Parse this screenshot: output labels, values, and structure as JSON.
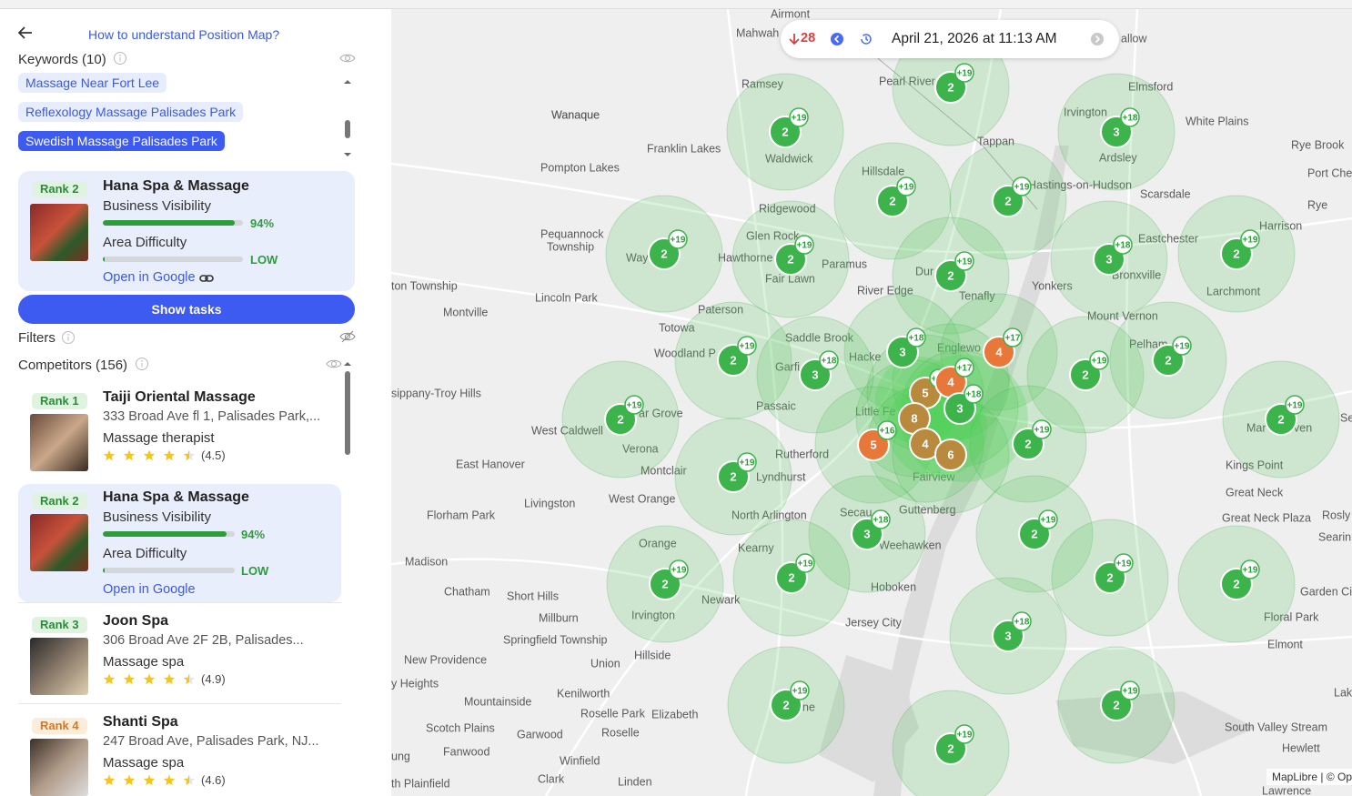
{
  "sidebar": {
    "help_link": "How to understand Position Map?",
    "keywords": {
      "label": "Keywords (10)",
      "items": [
        "Massage Near Fort Lee",
        "Reflexology Massage Palisades Park",
        "Swedish Massage Palisades Park"
      ]
    },
    "selected": {
      "rank": "Rank 2",
      "name": "Hana Spa & Massage",
      "visibility_label": "Business Visibility",
      "visibility": 94,
      "visibility_text": "94%",
      "difficulty_label": "Area Difficulty",
      "difficulty": "LOW",
      "link": "Open in Google"
    },
    "show_tasks": "Show tasks",
    "filters": "Filters",
    "competitors": {
      "label": "Competitors (156)",
      "items": [
        {
          "rank": "Rank 1",
          "name": "Taiji Oriental Massage",
          "address": "333 Broad Ave fl 1, Palisades Park,...",
          "category": "Massage therapist",
          "rating": "(4.5)"
        },
        {
          "rank": "Rank 2",
          "name": "Hana Spa & Massage",
          "visibility_label": "Business Visibility",
          "visibility": 94,
          "visibility_text": "94%",
          "difficulty_label": "Area Difficulty",
          "difficulty": "LOW",
          "link": "Open in Google"
        },
        {
          "rank": "Rank 3",
          "name": "Joon Spa",
          "address": "306 Broad Ave 2F 2B, Palisades...",
          "category": "Massage spa",
          "rating": "(4.9)"
        },
        {
          "rank": "Rank 4",
          "name": "Shanti Spa",
          "address": "247 Broad Ave, Palisades Park, NJ...",
          "category": "Massage spa",
          "rating": "(4.6)"
        }
      ]
    }
  },
  "map": {
    "toolbar": {
      "change": "28",
      "date": "April 21, 2026 at 11:13 AM"
    },
    "places": [
      "Airmont",
      "Mahwah",
      "Ramsey",
      "Pearl River",
      "Elmsford",
      "Wanaque",
      "Irvington",
      "White Plains",
      "Tappan",
      "Franklin Lakes",
      "Rye Brook",
      "Waldwick",
      "Ardsley",
      "Pompton Lakes",
      "Hillsdale",
      "Port Ches",
      "Hastings-on-Hudson",
      "Scarsdale",
      "Ridgewood",
      "Rye",
      "Harrison",
      "Pequannock",
      "Township",
      "Glen Rock",
      "Eastchester",
      "Hawthorne",
      "Paramus",
      "Fair Lawn",
      "Bronxville",
      "ton Township",
      "Lincoln Park",
      "River Edge",
      "Yonkers",
      "Tenafly",
      "Larchmont",
      "Montville",
      "Paterson",
      "Mount Vernon",
      "Totowa",
      "Saddle Brook",
      "Woodland P",
      "Hacke",
      "Englewo",
      "Pelham",
      "Garfi",
      "sippany-Troy Hills",
      "Passaic",
      "Little Fe",
      "ar Grove",
      "West Caldwell",
      "Verona",
      "Rutherford",
      "East Hanover",
      "Montclair",
      "Lyndhurst",
      "Kings Point",
      "Fairview",
      "Livingston",
      "West Orange",
      "Great Neck",
      "Guttenberg",
      "Florham Park",
      "North Arlington",
      "Secau",
      "Great Neck Plaza",
      "Rosly",
      "Searin",
      "Orange",
      "Kearny",
      "Weehawken",
      "Madison",
      "Hoboken",
      "Garden Cit",
      "Chatham",
      "Short Hills",
      "Newark",
      "Irvington",
      "Jersey City",
      "Floral Park",
      "Millburn",
      "Springfield Township",
      "Elmont",
      "Hillside",
      "New Providence",
      "Union",
      "y Heights",
      "Lak",
      "Mountainside",
      "Kenilworth",
      "Roselle Park",
      "Elizabeth",
      "South Valley Stream",
      "Scotch Plains",
      "Roselle",
      "Garwood",
      "Hewlett",
      "Fanwood",
      "Winfield",
      "Clark",
      "Linden",
      "th Plainfield",
      "ung",
      "Lawrence",
      "Wanaque",
      "Way",
      "Dur",
      "Mar",
      "ven",
      "Se",
      "ne",
      "allow"
    ],
    "markers": [
      {
        "rank": 2,
        "badge": "+19"
      },
      {
        "rank": 2,
        "badge": "+19"
      },
      {
        "rank": 3,
        "badge": "+18"
      },
      {
        "rank": 2,
        "badge": "+19"
      },
      {
        "rank": 2,
        "badge": "+19"
      },
      {
        "rank": 2,
        "badge": "+19"
      },
      {
        "rank": 2,
        "badge": "+19"
      },
      {
        "rank": 3,
        "badge": "+18"
      },
      {
        "rank": 2,
        "badge": "+19"
      },
      {
        "rank": 2,
        "badge": "+19"
      },
      {
        "rank": 3,
        "badge": "+18"
      },
      {
        "rank": 4,
        "badge": "+17"
      },
      {
        "rank": 2,
        "badge": "+19"
      },
      {
        "rank": 3,
        "badge": "+18"
      },
      {
        "rank": 2,
        "badge": "+19"
      },
      {
        "rank": 2,
        "badge": "+19"
      },
      {
        "rank": 2,
        "badge": "+19"
      },
      {
        "rank": 5,
        "badge": "+13"
      },
      {
        "rank": 4,
        "badge": "+17"
      },
      {
        "rank": 3,
        "badge": "+18"
      },
      {
        "rank": 8
      },
      {
        "rank": 5,
        "badge": "+16"
      },
      {
        "rank": 4
      },
      {
        "rank": 6
      },
      {
        "rank": 2,
        "badge": "+19"
      },
      {
        "rank": 2,
        "badge": "+19"
      },
      {
        "rank": 2,
        "badge": "+19"
      },
      {
        "rank": 3,
        "badge": "+18"
      },
      {
        "rank": 2,
        "badge": "+19"
      },
      {
        "rank": 2,
        "badge": "+19"
      },
      {
        "rank": 2,
        "badge": "+19"
      },
      {
        "rank": 2,
        "badge": "+19"
      },
      {
        "rank": 2,
        "badge": "+19"
      },
      {
        "rank": 3,
        "badge": "+18"
      },
      {
        "rank": 2,
        "badge": "+19"
      },
      {
        "rank": 2,
        "badge": "+19"
      },
      {
        "rank": 2,
        "badge": "+19"
      }
    ],
    "attribution": "MapLibre | © Op"
  }
}
